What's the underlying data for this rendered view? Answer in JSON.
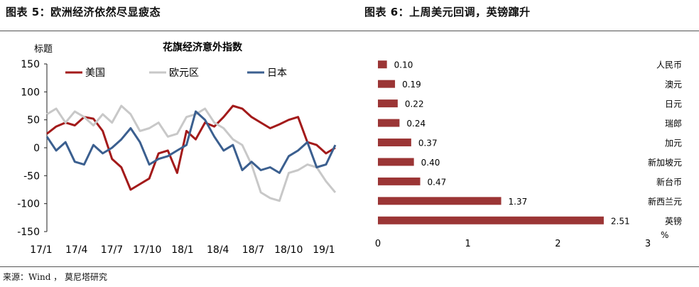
{
  "header": {
    "left_title": "图表 5：欧洲经济依然尽显疲态",
    "right_title": "图表 6：上周美元回调，英镑蹿升"
  },
  "footer": {
    "source": "来源：Wind ， 莫尼塔研究"
  },
  "chart_data": [
    {
      "type": "line",
      "title": "花旗经济意外指数",
      "ylabel": "标题",
      "ylim": [
        -150,
        150
      ],
      "yticks": [
        150,
        100,
        50,
        0,
        -50,
        -100,
        -150
      ],
      "xticks": [
        "17/1",
        "17/4",
        "17/7",
        "17/10",
        "18/1",
        "18/4",
        "18/7",
        "18/10",
        "19/1"
      ],
      "legend_position": "top",
      "grid": false,
      "series": [
        {
          "name": "美国",
          "color": "#a31a1a",
          "x": [
            0,
            4,
            8,
            12,
            16,
            20,
            24,
            28,
            32,
            36,
            40,
            44,
            48,
            52,
            56,
            60,
            64,
            68,
            72,
            76,
            80,
            84,
            88,
            92,
            96,
            100,
            104,
            108,
            112,
            116,
            120,
            124
          ],
          "values": [
            25,
            38,
            45,
            40,
            55,
            52,
            30,
            -20,
            -35,
            -75,
            -65,
            -55,
            -10,
            -5,
            -45,
            30,
            15,
            45,
            38,
            55,
            75,
            70,
            55,
            45,
            35,
            42,
            50,
            55,
            10,
            5,
            -10,
            0
          ]
        },
        {
          "name": "欧元区",
          "color": "#c8c8c8",
          "x": [
            0,
            4,
            8,
            12,
            16,
            20,
            24,
            28,
            32,
            36,
            40,
            44,
            48,
            52,
            56,
            60,
            64,
            68,
            72,
            76,
            80,
            84,
            88,
            92,
            96,
            100,
            104,
            108,
            112,
            116,
            120,
            124
          ],
          "values": [
            60,
            70,
            45,
            65,
            55,
            40,
            60,
            45,
            75,
            60,
            30,
            35,
            45,
            20,
            25,
            55,
            60,
            70,
            45,
            35,
            15,
            5,
            -30,
            -80,
            -90,
            -95,
            -45,
            -40,
            -30,
            -35,
            -60,
            -80
          ]
        },
        {
          "name": "日本",
          "color": "#3b5f8f",
          "x": [
            0,
            4,
            8,
            12,
            16,
            20,
            24,
            28,
            32,
            36,
            40,
            44,
            48,
            52,
            56,
            60,
            64,
            68,
            72,
            76,
            80,
            84,
            88,
            92,
            96,
            100,
            104,
            108,
            112,
            116,
            120,
            124
          ],
          "values": [
            20,
            -5,
            10,
            -25,
            -30,
            5,
            -10,
            0,
            15,
            35,
            10,
            -30,
            -20,
            -15,
            -5,
            5,
            65,
            50,
            20,
            -5,
            5,
            -40,
            -25,
            -40,
            -35,
            -45,
            -15,
            -5,
            10,
            -35,
            -30,
            5
          ]
        }
      ]
    },
    {
      "type": "bar",
      "orientation": "horizontal",
      "categories": [
        "人民币",
        "澳元",
        "日元",
        "瑞郎",
        "加元",
        "新加坡元",
        "新台币",
        "新西兰元",
        "英镑"
      ],
      "values": [
        0.1,
        0.19,
        0.22,
        0.24,
        0.37,
        0.4,
        0.47,
        1.37,
        2.51
      ],
      "value_labels": [
        "0.10",
        "0.19",
        "0.22",
        "0.24",
        "0.37",
        "0.40",
        "0.47",
        "1.37",
        "2.51"
      ],
      "xlim": [
        0,
        3
      ],
      "xticks": [
        "0",
        "1",
        "2",
        "3"
      ],
      "unit": "%",
      "color": "#9b3535",
      "grid": false
    }
  ]
}
